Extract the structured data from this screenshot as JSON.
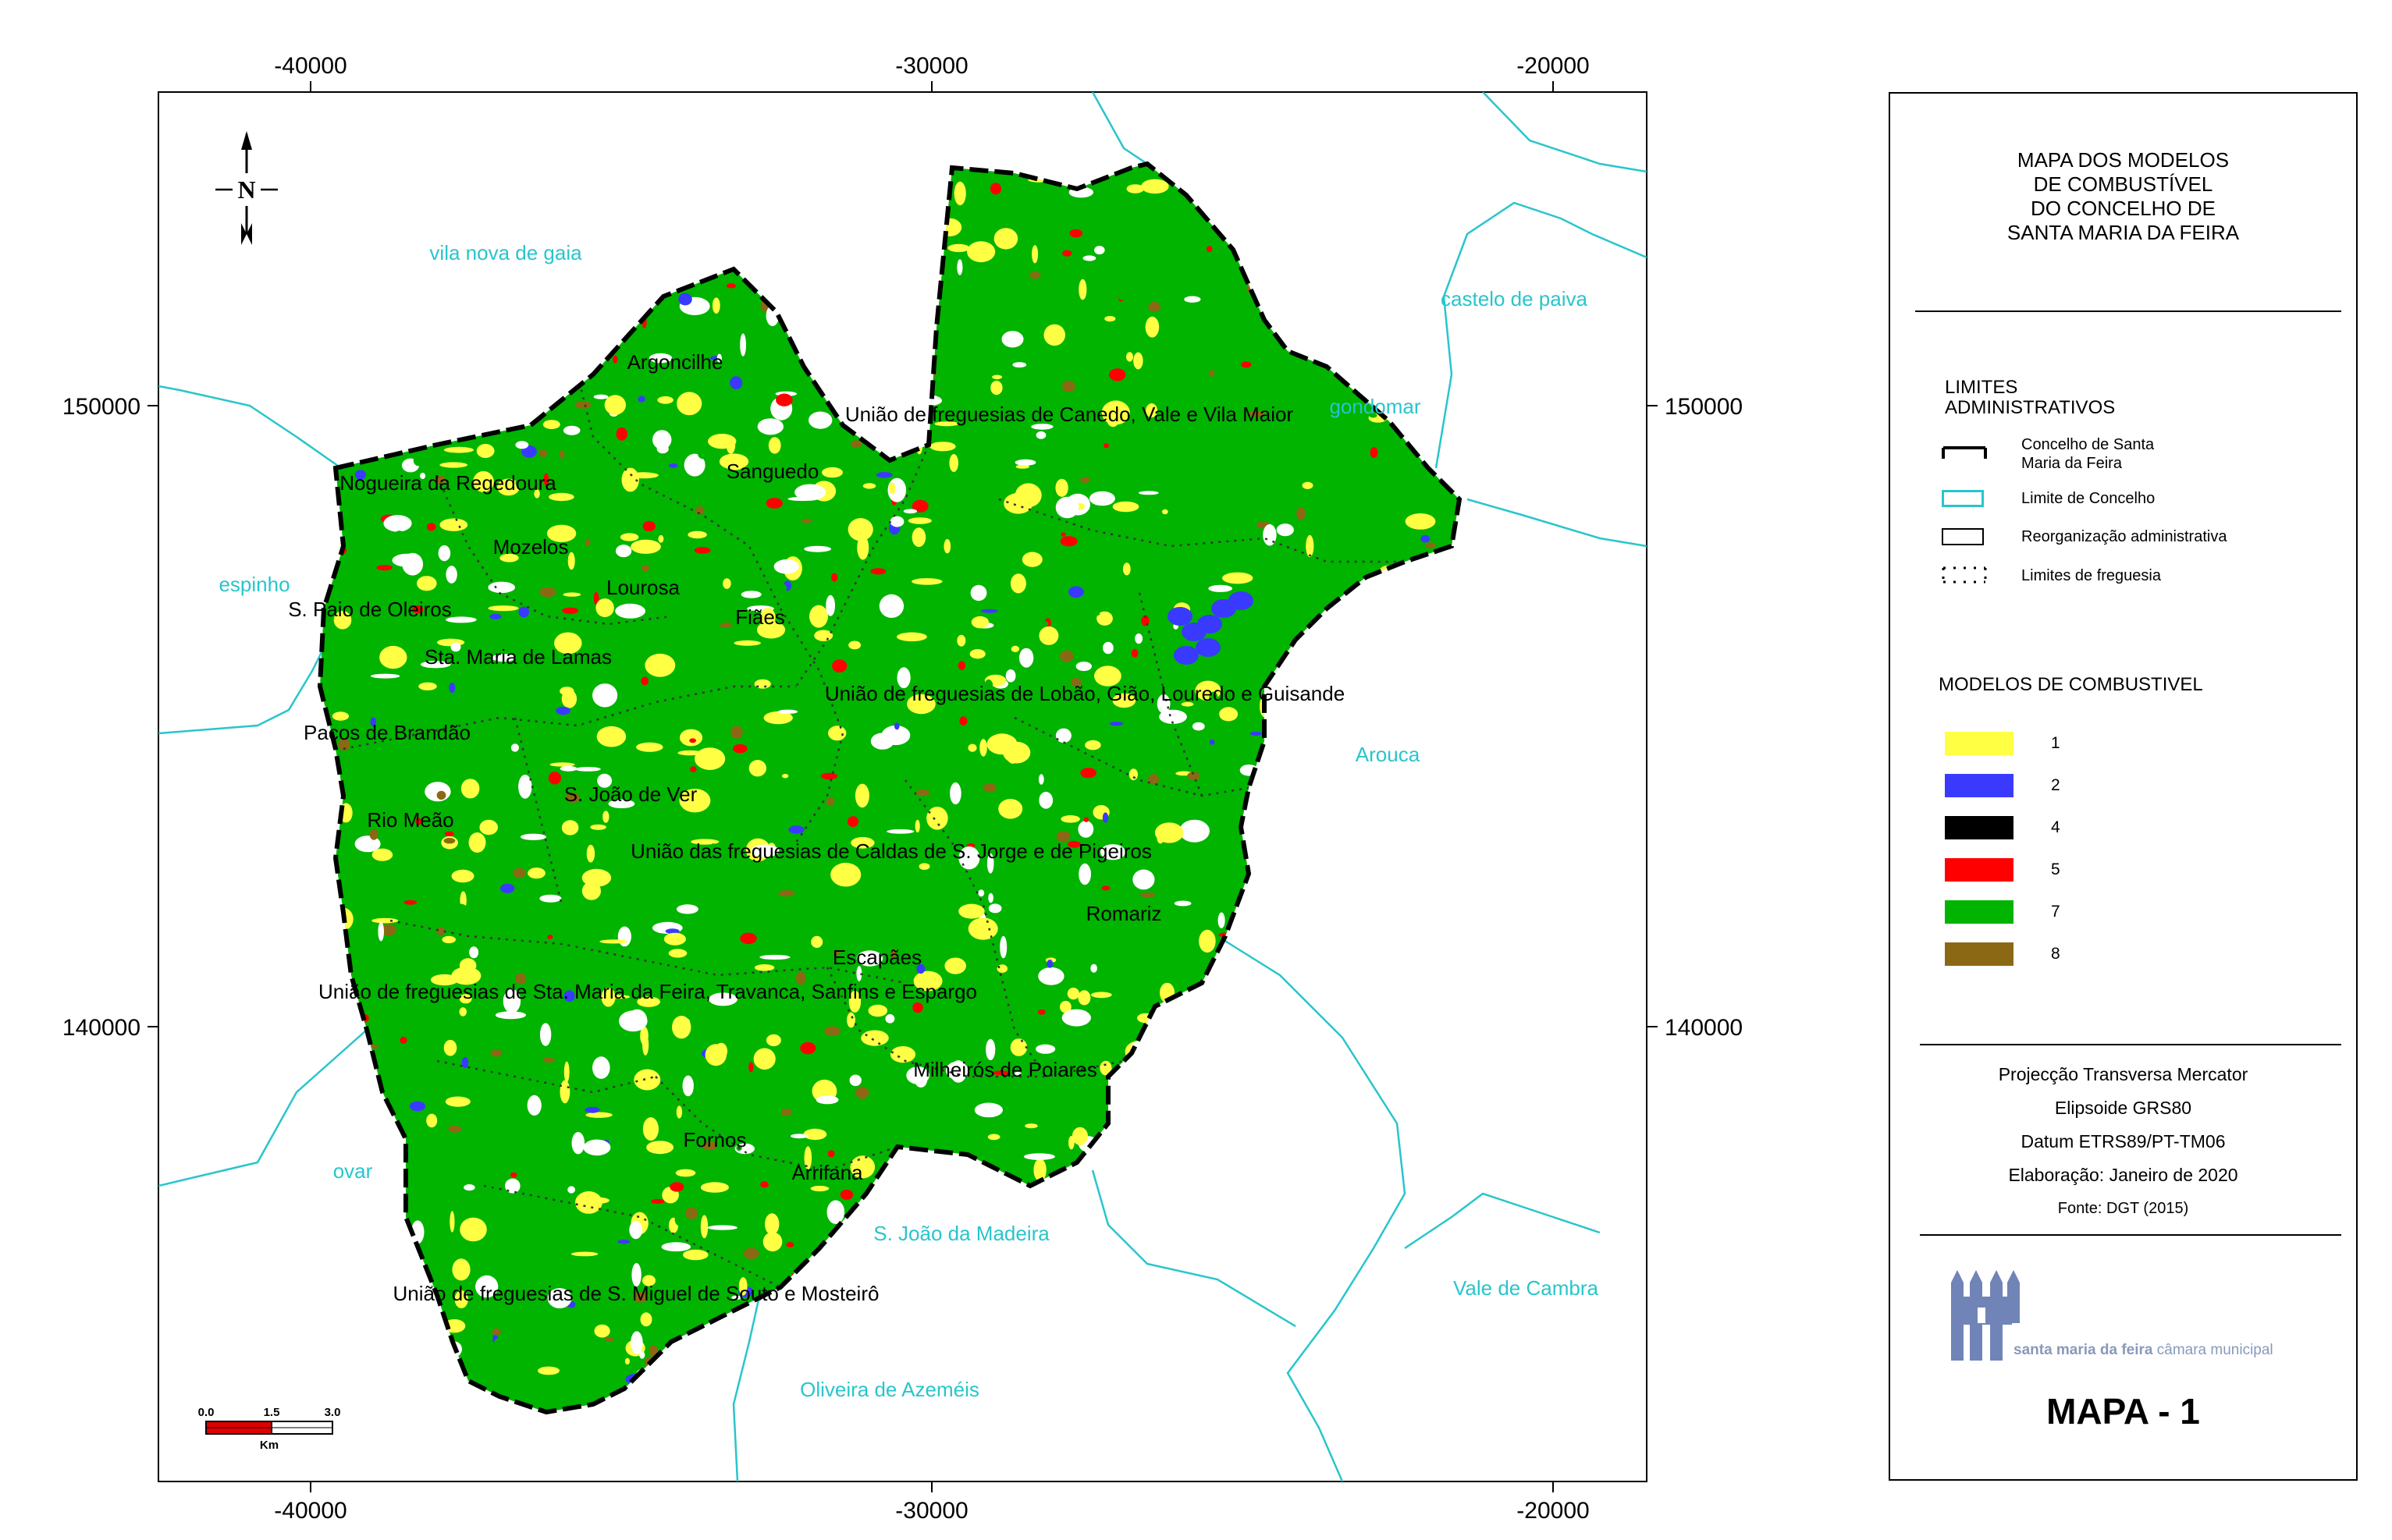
{
  "map": {
    "x_ticks": [
      "-40000",
      "-30000",
      "-20000"
    ],
    "y_ticks": [
      "150000",
      "140000"
    ],
    "north_label": "N",
    "scale": {
      "marks": [
        "0.0",
        "1.5",
        "3.0"
      ],
      "unit": "Km"
    },
    "neighbours": [
      "vila nova de gaia",
      "castelo de paiva",
      "gondomar",
      "espinho",
      "Arouca",
      "ovar",
      "S. João da Madeira",
      "Vale de Cambra",
      "Oliveira de Azeméis"
    ],
    "parishes": [
      "Argoncilhe",
      "União de freguesias de Canedo, Vale e Vila Maior",
      "Sanguedo",
      "Nogueira da Regedoura",
      "Mozelos",
      "Lourosa",
      "S. Paio de Oleiros",
      "Fiães",
      "Sta. Maria de Lamas",
      "União de freguesias de Lobão, Gião, Louredo e Guisande",
      "Paços de Brandão",
      "S. João de Ver",
      "Rio Meão",
      "União das freguesias de Caldas de S. Jorge e de Pigeiros",
      "Romariz",
      "Escapães",
      "União de freguesias de Sta. Maria da Feira, Travanca, Sanfins e Espargo",
      "Milheirós de Poiares",
      "Fornos",
      "Arrifana",
      "União de freguesias de S. Miguel de Souto e Mosteirô"
    ]
  },
  "legend": {
    "title": [
      "MAPA DOS MODELOS",
      "DE COMBUSTÍVEL",
      "DO CONCELHO DE",
      "SANTA MARIA DA FEIRA"
    ],
    "admin_heading": [
      "LIMITES",
      "ADMINISTRATIVOS"
    ],
    "admin_items": [
      [
        "Concelho de Santa",
        "Maria da Feira"
      ],
      [
        "Limite de Concelho"
      ],
      [
        "Reorganização administrativa"
      ],
      [
        "Limites de freguesia"
      ]
    ],
    "fuel_heading": "MODELOS DE COMBUSTIVEL",
    "fuel_models": [
      {
        "label": "1",
        "color": "#ffff44"
      },
      {
        "label": "2",
        "color": "#3a3aff"
      },
      {
        "label": "4",
        "color": "#000000"
      },
      {
        "label": "5",
        "color": "#ff0000"
      },
      {
        "label": "7",
        "color": "#00b400"
      },
      {
        "label": "8",
        "color": "#8b6914"
      }
    ],
    "projection": [
      "Projecção Transversa Mercator",
      "Elipsoide GRS80",
      "Datum ETRS89/PT-TM06",
      "Elaboração: Janeiro de 2020"
    ],
    "source": "Fonte: DGT (2015)",
    "logo_text": {
      "brand": "santa maria da feira",
      "org": "câmara municipal"
    },
    "map_number": "MAPA - 1"
  },
  "colors": {
    "neighbour_text": "#29c5cc",
    "county_fill": "#00b400"
  }
}
